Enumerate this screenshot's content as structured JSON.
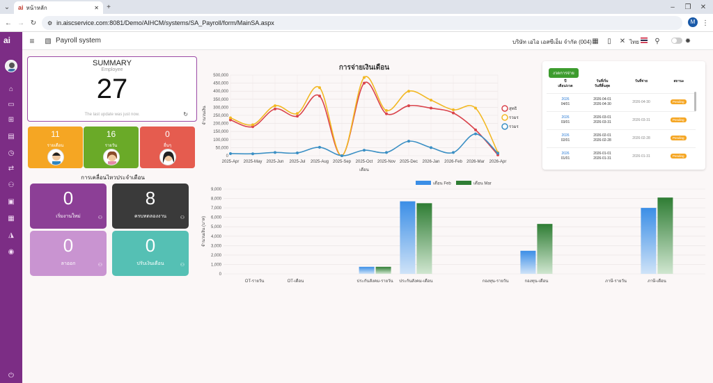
{
  "browser": {
    "tab_title": "หน้าหลัก",
    "url": "in.aiscservice.com:8081/Demo/AIHCM/systems/SA_Payroll/form/MainSA.aspx",
    "profile_initial": "M"
  },
  "header": {
    "module_title": "Payroll system",
    "company": "บริษัท เอไอ เอสซีเอ็ม จำกัด (004)",
    "language": "ไทย"
  },
  "summary": {
    "title": "SUMMARY",
    "subtitle": "Employee",
    "count": "27",
    "last_update": "The last update was just now."
  },
  "mini_cards": [
    {
      "value": "11",
      "label": "รายเดือน",
      "color": "#f5a623"
    },
    {
      "value": "16",
      "label": "รายวัน",
      "color": "#6aaa28"
    },
    {
      "value": "0",
      "label": "อื่นๆ",
      "color": "#e55c4f"
    }
  ],
  "movement": {
    "title": "การเคลื่อนไหวประจำเดือน",
    "cards": [
      {
        "value": "0",
        "label": "เริ่มงานใหม่",
        "color": "#8c3f96"
      },
      {
        "value": "8",
        "label": "ครบทดลองงาน",
        "color": "#3a3a3a"
      },
      {
        "value": "0",
        "label": "ลาออก",
        "color": "#c994d1"
      },
      {
        "value": "0",
        "label": "ปรับเงินเดือน",
        "color": "#55c0b4"
      }
    ]
  },
  "schedule": {
    "badge": "งวดการจ่าย",
    "headers": [
      "ปี\nเดือน/งวด",
      "วันที่เริ่ม\nวันที่สิ้นสุด",
      "วันที่จ่าย",
      "สถานะ"
    ],
    "rows": [
      {
        "year": "2026",
        "period": "04/01",
        "start": "2026-04-01",
        "end": "2026-04-30",
        "pay": "2026-04-30",
        "status": "Pending"
      },
      {
        "year": "2026",
        "period": "03/01",
        "start": "2026-03-01",
        "end": "2026-03-31",
        "pay": "2026-03-31",
        "status": "Pending"
      },
      {
        "year": "2026",
        "period": "02/01",
        "start": "2026-02-01",
        "end": "2026-02-28",
        "pay": "2026-02-28",
        "status": "Pending"
      },
      {
        "year": "2026",
        "period": "01/01",
        "start": "2026-01-01",
        "end": "2026-01-31",
        "pay": "2026-01-31",
        "status": "Pending"
      }
    ]
  },
  "chart_data": [
    {
      "type": "line",
      "title": "การจ่ายเงินเดือน",
      "xlabel": "เดือน",
      "ylabel": "จำนวนเงิน",
      "ylim": [
        0,
        500000
      ],
      "yticks": [
        "0",
        "50,000",
        "100,000",
        "150,000",
        "200,000",
        "250,000",
        "300,000",
        "350,000",
        "400,000",
        "450,000",
        "500,000"
      ],
      "categories": [
        "2025-Apr",
        "2025-May",
        "2025-Jun",
        "2025-Jul",
        "2025-Aug",
        "2025-Sep",
        "2025-Oct",
        "2025-Nov",
        "2025-Dec",
        "2026-Jan",
        "2026-Feb",
        "2026-Mar",
        "2026-Apr"
      ],
      "legend": "right",
      "series": [
        {
          "name": "สุทธิ",
          "color": "#d9434b",
          "values": [
            222000,
            180000,
            290000,
            245000,
            370000,
            0,
            450000,
            260000,
            310000,
            295000,
            265000,
            160000,
            5000
          ]
        },
        {
          "name": "รวมรายได้",
          "color": "#f2b823",
          "values": [
            235000,
            192000,
            310000,
            262000,
            422000,
            0,
            485000,
            280000,
            400000,
            345000,
            285000,
            295000,
            20000
          ]
        },
        {
          "name": "รวมรายหัก",
          "color": "#3a8fc4",
          "values": [
            13000,
            12000,
            20000,
            17000,
            52000,
            0,
            34000,
            20000,
            90000,
            50000,
            20000,
            135000,
            15000
          ]
        }
      ]
    },
    {
      "type": "bar",
      "ylabel": "จำนวนเงิน (บาท)",
      "ylim": [
        0,
        9000
      ],
      "yticks": [
        "0",
        "1,000",
        "2,000",
        "3,000",
        "4,000",
        "5,000",
        "6,000",
        "7,000",
        "8,000",
        "9,000"
      ],
      "legend": "top",
      "categories": [
        "OT-รายวัน",
        "OT-เดือน",
        "ประกันสังคม-รายวัน",
        "ประกันสังคม-เดือน",
        "กองทุน-รายวัน",
        "กองทุน-เดือน",
        "ภาษี-รายวัน",
        "ภาษี-เดือน"
      ],
      "series": [
        {
          "name": "เดือน Feb",
          "color": "#3b8ee6",
          "values": [
            0,
            0,
            750,
            7700,
            0,
            2450,
            0,
            7000
          ]
        },
        {
          "name": "เดือน Mar",
          "color": "#2f7d34",
          "values": [
            0,
            0,
            750,
            7500,
            0,
            5300,
            0,
            8100
          ]
        }
      ]
    }
  ]
}
